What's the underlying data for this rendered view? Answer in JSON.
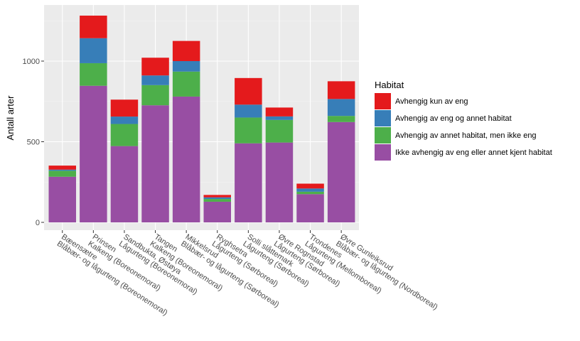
{
  "chart_data": {
    "type": "bar",
    "stacked": true,
    "title": "",
    "xlabel": "",
    "ylabel": "Antall arter",
    "ylim": [
      0,
      1300
    ],
    "yticks": [
      0,
      500,
      1000
    ],
    "grid": true,
    "legend_position": "right",
    "categories": [
      "Bæensætre\nBlåbær- og lågurteng (Boreonemoral)",
      "Prinsen\nKalkeng (Boreonemoral)",
      "Sandbukta, Østøya\nLågurteng (Boreonemoral)",
      "Tangen\nKalkeng (Boreonemoral)",
      "Mikkelsrud\nBlåbær- og lågurteng (Sørboreal)",
      "Ryghsetra\nLågurteng (Sørboreal)",
      "Solli slåttemark\nLågurteng (Sørboreal)",
      "Øvre Rognstad\nLågurteng (Sørboreal)",
      "Trondenes\nLågurteng (Mellomboreal)",
      "Øvre Gunleiksrud\nBlåbær- og lågurteng (Nordboreal)"
    ],
    "legend": {
      "title": "Habitat",
      "entries": [
        {
          "label": "Avhengig kun av eng",
          "color": "#E41A1C"
        },
        {
          "label": "Avhengig av eng og annet habitat",
          "color": "#377EB8"
        },
        {
          "label": "Avhengig av annet habitat, men ikke eng",
          "color": "#4DAF4A"
        },
        {
          "label": "Ikke avhengig av eng eller annet kjent habitat",
          "color": "#984EA3"
        }
      ]
    },
    "series": [
      {
        "name": "Ikke avhengig av eng eller annet kjent habitat",
        "color": "#984EA3",
        "values": [
          283,
          847,
          473,
          726,
          780,
          128,
          490,
          495,
          175,
          622
        ]
      },
      {
        "name": "Avhengig av annet habitat, men ikke eng",
        "color": "#4DAF4A",
        "values": [
          37,
          140,
          137,
          125,
          155,
          17,
          160,
          140,
          15,
          38
        ]
      },
      {
        "name": "Avhengig av eng og annet habitat",
        "color": "#377EB8",
        "values": [
          7,
          155,
          46,
          60,
          65,
          10,
          80,
          22,
          20,
          105
        ]
      },
      {
        "name": "Avhengig kun av eng",
        "color": "#E41A1C",
        "values": [
          25,
          140,
          105,
          110,
          125,
          15,
          165,
          55,
          30,
          110
        ]
      }
    ]
  }
}
